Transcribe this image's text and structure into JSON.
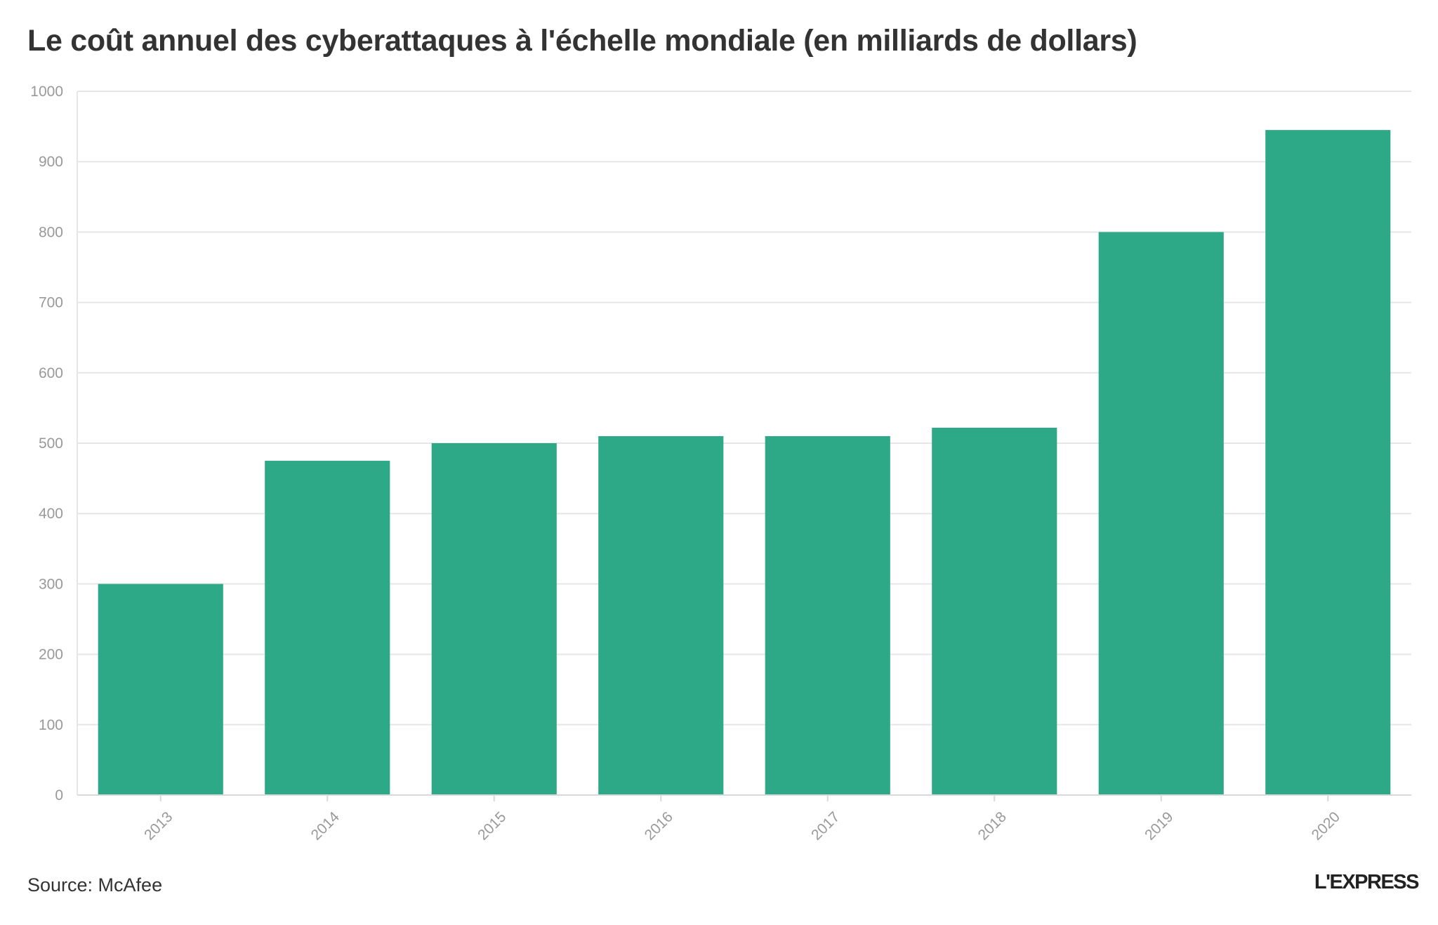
{
  "title": "Le coût annuel des cyberattaques à l'échelle mondiale (en milliards de dollars)",
  "source": "Source: McAfee",
  "logo": "L'EXPRESS",
  "colors": {
    "bar": "#2ea987",
    "grid": "#e6e6e6",
    "axis": "#d9d9d9",
    "tick_label": "#999999",
    "text": "#333333"
  },
  "chart_data": {
    "type": "bar",
    "title": "Le coût annuel des cyberattaques à l'échelle mondiale (en milliards de dollars)",
    "categories": [
      "2013",
      "2014",
      "2015",
      "2016",
      "2017",
      "2018",
      "2019",
      "2020"
    ],
    "values": [
      300,
      475,
      500,
      510,
      510,
      522,
      800,
      945
    ],
    "xlabel": "",
    "ylabel": "",
    "ylim": [
      0,
      1000
    ],
    "yticks": [
      0,
      100,
      200,
      300,
      400,
      500,
      600,
      700,
      800,
      900,
      1000
    ],
    "grid": true,
    "legend": "none"
  }
}
